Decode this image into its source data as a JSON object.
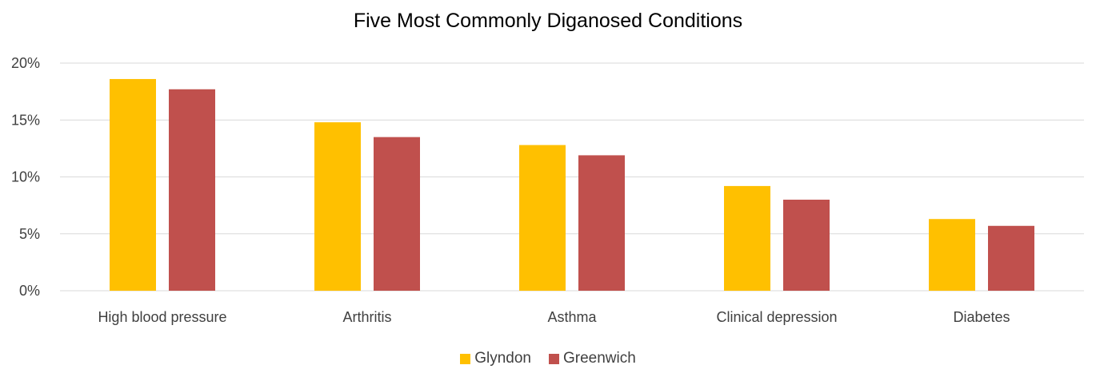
{
  "chart_data": {
    "type": "bar",
    "title": "Five Most Commonly Diganosed Conditions",
    "xlabel": "",
    "ylabel": "",
    "categories": [
      "High blood pressure",
      "Arthritis",
      "Asthma",
      "Clinical depression",
      "Diabetes"
    ],
    "series": [
      {
        "name": "Glyndon",
        "color": "#FFC000",
        "values": [
          18.6,
          14.8,
          12.8,
          9.2,
          6.3
        ]
      },
      {
        "name": "Greenwich",
        "color": "#C0504D",
        "values": [
          17.7,
          13.5,
          11.9,
          8.0,
          5.7
        ]
      }
    ],
    "ylim": [
      0,
      20
    ],
    "yticks": [
      0,
      5,
      10,
      15,
      20
    ],
    "ytick_labels": [
      "0%",
      "5%",
      "10%",
      "15%",
      "20%"
    ],
    "grid": true,
    "gridline_color": "#D9D9D9",
    "legend_position": "bottom"
  }
}
